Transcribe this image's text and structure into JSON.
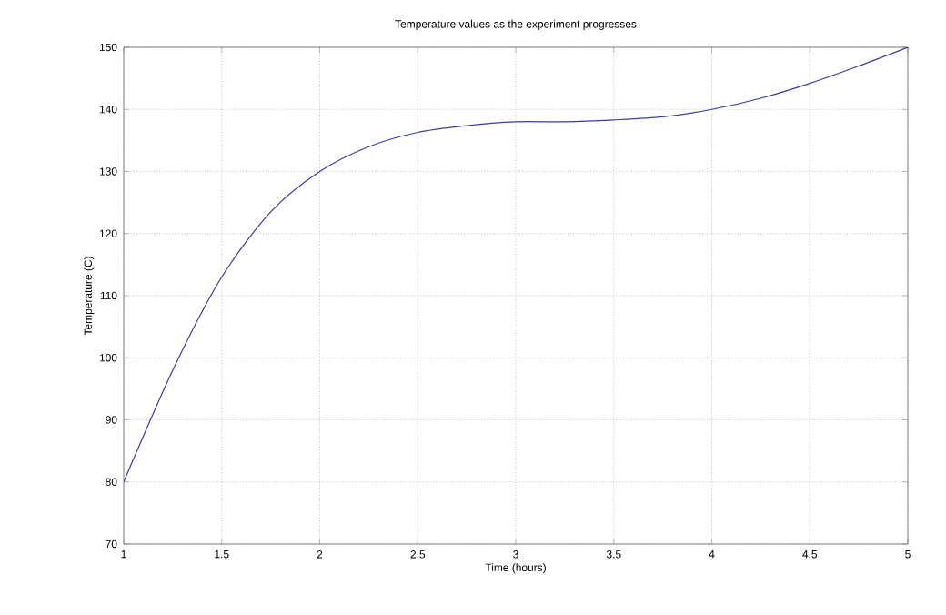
{
  "chart_data": {
    "type": "line",
    "title": "Temperature values as the experiment progresses",
    "xlabel": "Time (hours)",
    "ylabel": "Temperature (C)",
    "x": [
      1,
      1.25,
      1.5,
      1.75,
      2,
      2.25,
      2.5,
      2.75,
      3,
      3.25,
      3.5,
      3.75,
      4,
      4.25,
      4.5,
      4.75,
      5
    ],
    "series": [
      {
        "color": "#3a3aa0",
        "values": [
          80,
          98,
          113,
          123.5,
          130,
          134,
          136.3,
          137.4,
          138,
          138,
          138.3,
          138.8,
          140,
          141.8,
          144.2,
          147,
          150
        ]
      }
    ],
    "xlim": [
      1,
      5
    ],
    "ylim": [
      70,
      150
    ],
    "xticks": [
      1,
      1.5,
      2,
      2.5,
      3,
      3.5,
      4,
      4.5,
      5
    ],
    "yticks": [
      70,
      80,
      90,
      100,
      110,
      120,
      130,
      140,
      150
    ],
    "grid": true,
    "marker": "none",
    "line_style": "solid"
  }
}
